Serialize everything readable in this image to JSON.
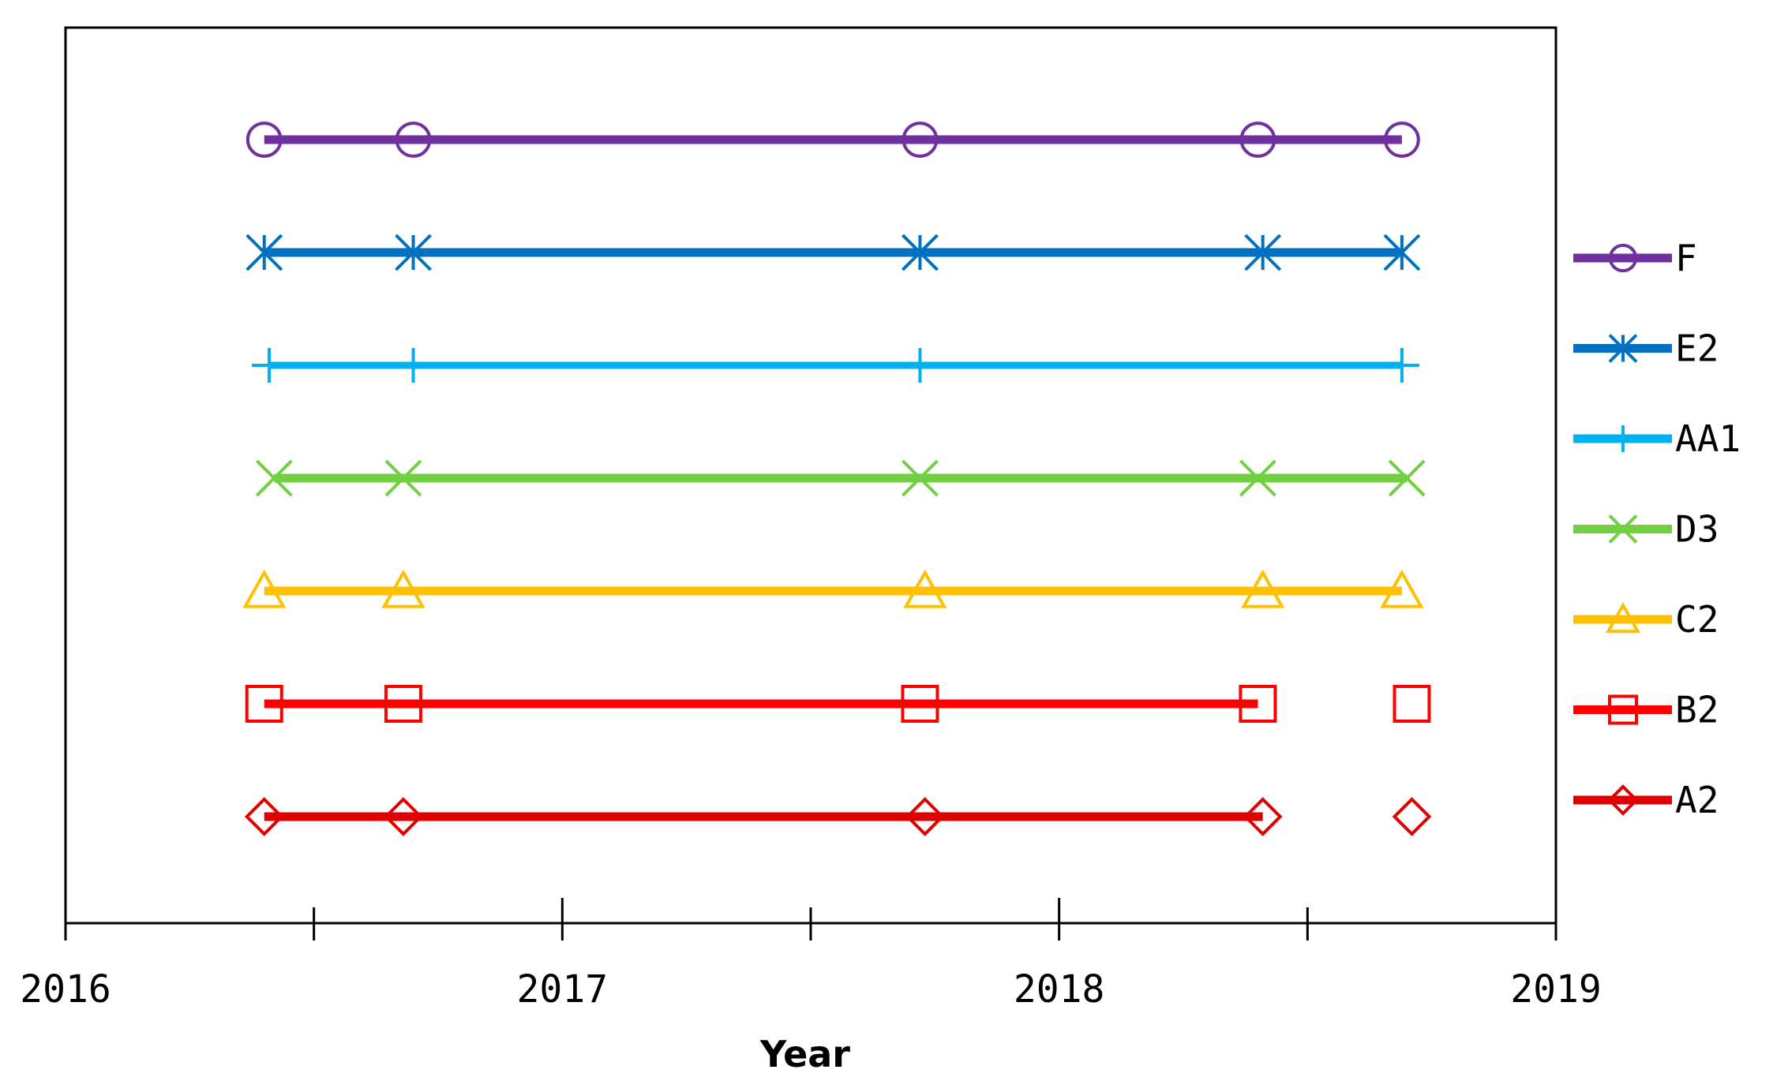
{
  "chart_data": {
    "type": "line",
    "title": "",
    "xlabel": "Year",
    "ylabel": "",
    "xlim": [
      2016,
      2019
    ],
    "x_major_ticks": [
      2016,
      2017,
      2018,
      2019
    ],
    "x_minor_ticks": [
      2016.5,
      2017.5,
      2018.5
    ],
    "x_tick_labels": [
      "2016",
      "2017",
      "2018",
      "2019"
    ],
    "grid": false,
    "legend_position": "right",
    "series": [
      {
        "name": "F",
        "color": "#7030A0",
        "marker": "circle",
        "line": true,
        "x": [
          2016.4,
          2016.7,
          2017.72,
          2018.4,
          2018.69
        ]
      },
      {
        "name": "E2",
        "color": "#0070C0",
        "marker": "asterisk",
        "line": true,
        "x": [
          2016.4,
          2016.7,
          2017.72,
          2018.41,
          2018.69
        ]
      },
      {
        "name": "AA1",
        "color": "#00B0F0",
        "marker": "plus",
        "line": true,
        "x": [
          2016.41,
          2016.7,
          2017.72,
          2018.69
        ]
      },
      {
        "name": "D3",
        "color": "#70D040",
        "marker": "cross",
        "line": true,
        "x": [
          2016.42,
          2016.68,
          2017.72,
          2018.4,
          2018.7
        ]
      },
      {
        "name": "C2",
        "color": "#FFC000",
        "marker": "triangle",
        "line": true,
        "x": [
          2016.4,
          2016.68,
          2017.73,
          2018.41,
          2018.69
        ]
      },
      {
        "name": "B2",
        "color": "#FF0000",
        "marker": "square",
        "line": true,
        "x": [
          2016.4,
          2016.68,
          2017.72,
          2018.4
        ],
        "unconnected_x": [
          2018.71
        ]
      },
      {
        "name": "A2",
        "color": "#E00000",
        "marker": "diamond",
        "line": true,
        "x": [
          2016.4,
          2016.68,
          2017.73,
          2018.41
        ],
        "unconnected_x": [
          2018.71
        ]
      }
    ]
  }
}
